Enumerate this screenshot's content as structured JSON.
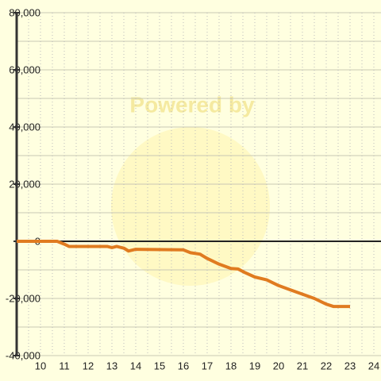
{
  "chart_data": {
    "type": "line",
    "watermark": "Powered by",
    "x": [
      9,
      10.7,
      11,
      11.2,
      12.8,
      13,
      13.2,
      13.5,
      13.7,
      14,
      16,
      16.3,
      16.7,
      17,
      17.5,
      18,
      18.3,
      18.6,
      19,
      19.5,
      20,
      20.5,
      21,
      21.5,
      22,
      22.3,
      23
    ],
    "series": [
      {
        "color": "#e07b20",
        "values": [
          0,
          0,
          -1000,
          -1800,
          -1800,
          -2200,
          -1800,
          -2400,
          -3400,
          -2800,
          -3000,
          -4000,
          -4500,
          -6000,
          -8000,
          -9500,
          -9700,
          -11000,
          -12500,
          -13500,
          -15500,
          -17000,
          -18500,
          -20000,
          -22000,
          -22800,
          -22800
        ]
      }
    ],
    "xlim": [
      9,
      24.3
    ],
    "xticks": [
      10,
      11,
      12,
      13,
      14,
      15,
      16,
      17,
      18,
      19,
      20,
      21,
      22,
      23,
      24
    ],
    "ylim": [
      -40000,
      80000
    ],
    "yticks": [
      {
        "value": -40000,
        "label": "-40,000"
      },
      {
        "value": -20000,
        "label": "-20,000"
      },
      0,
      {
        "value": 20000,
        "label": "20,000"
      },
      {
        "value": 40000,
        "label": "40,000"
      },
      {
        "value": 60000,
        "label": "60,000"
      },
      {
        "value": 80000,
        "label": "80,000"
      }
    ],
    "grid": true
  }
}
